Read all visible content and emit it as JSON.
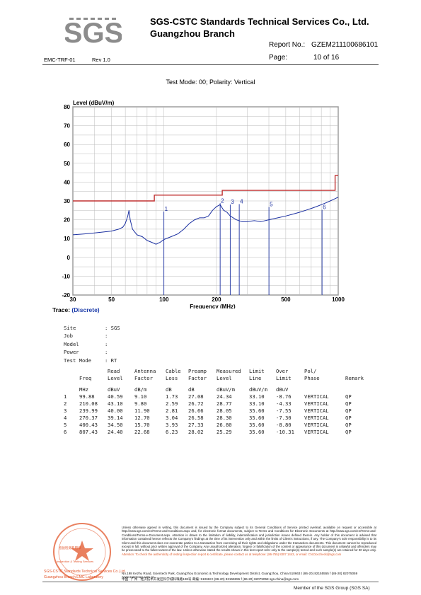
{
  "header": {
    "logo_text": "SGS",
    "company_line1": "SGS-CSTC Standards Technical Services Co., Ltd.",
    "company_line2": "Guangzhou Branch",
    "report_no_label": "Report No.:",
    "report_no": "GZEM211100686101",
    "page_label": "Page:",
    "page_value": "10 of 16",
    "doc_id": "EMC-TRF-01",
    "rev": "Rev 1.0"
  },
  "test_mode": "Test Mode: 00; Polarity: Vertical",
  "chart_data": {
    "type": "line",
    "ylabel": "Level (dBuV/m)",
    "xlabel": "Frequency (MHz)",
    "xscale": "log",
    "xlim": [
      30,
      1000
    ],
    "ylim": [
      -20,
      80
    ],
    "x_ticks": [
      "30",
      "50",
      "100",
      "200",
      "500",
      "1000"
    ],
    "y_ticks": [
      "-20",
      "-10",
      "0",
      "10",
      "20",
      "30",
      "40",
      "50",
      "60",
      "70",
      "80"
    ],
    "grid": true,
    "limit_line": {
      "color": "#c03030",
      "points": [
        [
          30,
          30
        ],
        [
          88,
          30
        ],
        [
          88,
          33.1
        ],
        [
          216,
          33.1
        ],
        [
          216,
          35.6
        ],
        [
          960,
          35.6
        ],
        [
          960,
          43.5
        ],
        [
          1000,
          43.5
        ]
      ]
    },
    "trace": {
      "color": "#1a2fa0",
      "points": [
        [
          30,
          12
        ],
        [
          35,
          12.5
        ],
        [
          40,
          13
        ],
        [
          45,
          13.5
        ],
        [
          50,
          14
        ],
        [
          55,
          15
        ],
        [
          58,
          16
        ],
        [
          60,
          18
        ],
        [
          62,
          22
        ],
        [
          63,
          25
        ],
        [
          64,
          20
        ],
        [
          66,
          15
        ],
        [
          70,
          12
        ],
        [
          75,
          11
        ],
        [
          80,
          9
        ],
        [
          85,
          8
        ],
        [
          90,
          7
        ],
        [
          95,
          8
        ],
        [
          100,
          9.5
        ],
        [
          110,
          11
        ],
        [
          120,
          12.5
        ],
        [
          130,
          15
        ],
        [
          140,
          18
        ],
        [
          150,
          20
        ],
        [
          160,
          21
        ],
        [
          170,
          21
        ],
        [
          180,
          22
        ],
        [
          190,
          25
        ],
        [
          200,
          27
        ],
        [
          210,
          28
        ],
        [
          220,
          25
        ],
        [
          230,
          24
        ],
        [
          240,
          22
        ],
        [
          260,
          20
        ],
        [
          280,
          19
        ],
        [
          300,
          19
        ],
        [
          330,
          19.5
        ],
        [
          360,
          19
        ],
        [
          400,
          20
        ],
        [
          450,
          21
        ],
        [
          500,
          22
        ],
        [
          550,
          23
        ],
        [
          600,
          24
        ],
        [
          650,
          25
        ],
        [
          700,
          26
        ],
        [
          750,
          27
        ],
        [
          800,
          28
        ],
        [
          850,
          29
        ],
        [
          900,
          30
        ],
        [
          950,
          31
        ],
        [
          1000,
          32
        ]
      ]
    },
    "markers": [
      {
        "label": "1",
        "freq": 99.88,
        "level": 24.34
      },
      {
        "label": "2",
        "freq": 210.08,
        "level": 28.77
      },
      {
        "label": "3",
        "freq": 239.99,
        "level": 28.05
      },
      {
        "label": "4",
        "freq": 270.37,
        "level": 28.3
      },
      {
        "label": "5",
        "freq": 400.43,
        "level": 26.8
      },
      {
        "label": "6",
        "freq": 807.43,
        "level": 25.29
      }
    ]
  },
  "trace_label": "Trace:",
  "trace_value": "(Discrete)",
  "info": [
    {
      "k": "Site",
      "v": ": SGS"
    },
    {
      "k": "Job",
      "v": ":"
    },
    {
      "k": "Model",
      "v": ":"
    },
    {
      "k": "Power",
      "v": ":"
    },
    {
      "k": "Test Mode",
      "v": ": RT"
    }
  ],
  "table": {
    "header1": [
      "",
      "Freq",
      "Read Level",
      "Antenna Factor",
      "Cable Loss",
      "Preamp Factor",
      "Measured Level",
      "Limit Line",
      "Over Limit",
      "Pol/ Phase",
      "Remark"
    ],
    "units": [
      "",
      "MHz",
      "dBuV",
      "dB/m",
      "dB",
      "dB",
      "dBuV/m",
      "dBuV/m",
      "dBuV",
      "",
      ""
    ],
    "rows": [
      [
        "1",
        "99.88",
        "40.59",
        "9.10",
        "1.73",
        "27.08",
        "24.34",
        "33.10",
        "-8.76",
        "VERTICAL",
        "QP"
      ],
      [
        "2",
        "210.08",
        "43.10",
        "9.80",
        "2.59",
        "26.72",
        "28.77",
        "33.10",
        "-4.33",
        "VERTICAL",
        "QP"
      ],
      [
        "3",
        "239.99",
        "40.00",
        "11.90",
        "2.81",
        "26.66",
        "28.05",
        "35.60",
        "-7.55",
        "VERTICAL",
        "QP"
      ],
      [
        "4",
        "270.37",
        "39.14",
        "12.70",
        "3.04",
        "26.58",
        "28.30",
        "35.60",
        "-7.30",
        "VERTICAL",
        "QP"
      ],
      [
        "5",
        "400.43",
        "34.50",
        "15.70",
        "3.93",
        "27.33",
        "26.80",
        "35.60",
        "-8.80",
        "VERTICAL",
        "QP"
      ],
      [
        "6",
        "807.43",
        "24.40",
        "22.68",
        "6.23",
        "28.02",
        "25.29",
        "35.60",
        "-10.31",
        "VERTICAL",
        "QP"
      ]
    ]
  },
  "footer": {
    "disclaimer": "Unless otherwise agreed in writing, this document is issued by the Company subject to its General Conditions of Service printed overleaf, available on request or accessible at http://www.sgs.com/en/Terms-and-Conditions.aspx and, for electronic format documents, subject to Terms and Conditions for Electronic Documents at http://www.sgs.com/en/Terms-and-Conditions/Terms-e-Document.aspx. Attention is drawn to the limitation of liability, indemnification and jurisdiction issues defined therein. Any holder of this document is advised that information contained hereon reflects the Company's findings at the time of its intervention only and within the limits of Client's instructions, if any. The Company's sole responsibility is to its Client and this document does not exonerate parties to a transaction from exercising all their rights and obligations under the transaction documents. This document cannot be reproduced except in full, without prior written approval of the Company. Any unauthorized alteration, forgery or falsification of the content or appearance of this document is unlawful and offenders may be prosecuted to the fullest extent of the law. Unless otherwise stated the results shown in this test report refer only to the sample(s) tested and such sample(s) are retained for 30 days only.",
    "attention": "Attention: To check the authenticity of testing /inspection report & certificate, please contact us at telephone: (86-755) 8307 1443, or email: CN.Doccheck@sgs.com",
    "address_en": "No.198 Kezhu Road, Scientech Park, Guangzhou Economic & Technology Development District, Guangzhou, China  510663   t (86-20) 82155555   f (86-20) 82075059   www.sgsgroup.com.cn",
    "address_cn": "中国 · 广州 · 经济技术开发区科学城科珠路198号          邮编: 510663   t (86-20) 82155555   f (86-20) 82075058   sgs.china@sgs.com",
    "stamp_text": "检验检测专用章",
    "stamp_sub": "Inspection & Testing Services",
    "stamp_caption1": "SGS-CSTC Standards Technical Services Co.,Ltd.",
    "stamp_caption2": "Guangzhou Branch EMC Laboratory",
    "member": "Member of the SGS Group (SGS SA)"
  }
}
